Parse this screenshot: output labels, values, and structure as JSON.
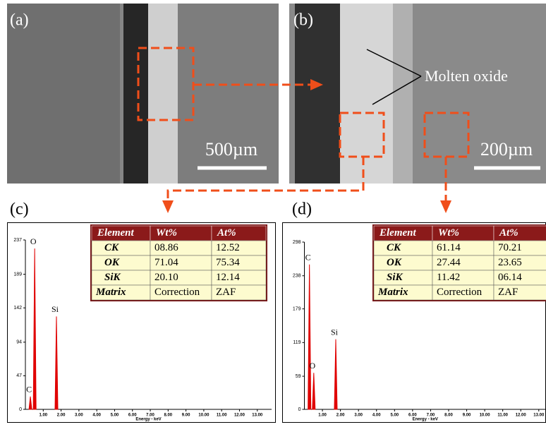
{
  "figure": {
    "panels": [
      {
        "label": "(a)",
        "scale_bar": "500µm"
      },
      {
        "label": "(b)",
        "scale_bar": "200µm",
        "annotation": "Molten oxide"
      }
    ]
  },
  "chart_data": [
    {
      "type": "spectrum",
      "panel_label": "(c)",
      "xlabel": "Energy - keV",
      "color": "#e00000",
      "xlim": [
        0,
        13.8
      ],
      "ylim": [
        0,
        237
      ],
      "xticks": [
        {
          "value": 1,
          "label": "1.00"
        },
        {
          "value": 2,
          "label": "2.00"
        },
        {
          "value": 3,
          "label": "3.00"
        },
        {
          "value": 4,
          "label": "4.00"
        },
        {
          "value": 5,
          "label": "5.00"
        },
        {
          "value": 6,
          "label": "6.00"
        },
        {
          "value": 7,
          "label": "7.00"
        },
        {
          "value": 8,
          "label": "8.00"
        },
        {
          "value": 9,
          "label": "9.00"
        },
        {
          "value": 10,
          "label": "10.00"
        },
        {
          "value": 11,
          "label": "11.00"
        },
        {
          "value": 12,
          "label": "12.00"
        },
        {
          "value": 13,
          "label": "13.00"
        }
      ],
      "yticks": [
        0,
        47,
        94,
        142,
        189,
        237
      ],
      "peak_labels": [
        "C",
        "O",
        "Si"
      ],
      "x": [
        0.28,
        0.52,
        1.74
      ],
      "values": [
        18,
        225,
        130
      ],
      "table": {
        "header": [
          "Element",
          "Wt%",
          "At%"
        ],
        "rows": [
          [
            "CK",
            "08.86",
            "12.52"
          ],
          [
            "OK",
            "71.04",
            "75.34"
          ],
          [
            "SiK",
            "20.10",
            "12.14"
          ],
          [
            "Matrix",
            "Correction",
            "ZAF"
          ]
        ]
      }
    },
    {
      "type": "spectrum",
      "panel_label": "(d)",
      "xlabel": "Energy - keV",
      "color": "#e00000",
      "xlim": [
        0,
        13.4
      ],
      "ylim": [
        0,
        298
      ],
      "xticks": [
        {
          "value": 1,
          "label": "1.00"
        },
        {
          "value": 2,
          "label": "2.00"
        },
        {
          "value": 3,
          "label": "3.00"
        },
        {
          "value": 4,
          "label": "4.00"
        },
        {
          "value": 5,
          "label": "5.00"
        },
        {
          "value": 6,
          "label": "6.00"
        },
        {
          "value": 7,
          "label": "7.00"
        },
        {
          "value": 8,
          "label": "8.00"
        },
        {
          "value": 9,
          "label": "9.00"
        },
        {
          "value": 10,
          "label": "10.00"
        },
        {
          "value": 11,
          "label": "11.00"
        },
        {
          "value": 12,
          "label": "12.00"
        },
        {
          "value": 13,
          "label": "13.00"
        }
      ],
      "yticks": [
        0,
        59,
        119,
        179,
        238,
        298
      ],
      "peak_labels": [
        "C",
        "O",
        "Si"
      ],
      "x": [
        0.28,
        0.52,
        1.74
      ],
      "values": [
        258,
        65,
        125
      ],
      "table": {
        "header": [
          "Element",
          "Wt%",
          "At%"
        ],
        "rows": [
          [
            "CK",
            "61.14",
            "70.21"
          ],
          [
            "OK",
            "27.44",
            "23.65"
          ],
          [
            "SiK",
            "11.42",
            "06.14"
          ],
          [
            "Matrix",
            "Correction",
            "ZAF"
          ]
        ]
      }
    }
  ]
}
